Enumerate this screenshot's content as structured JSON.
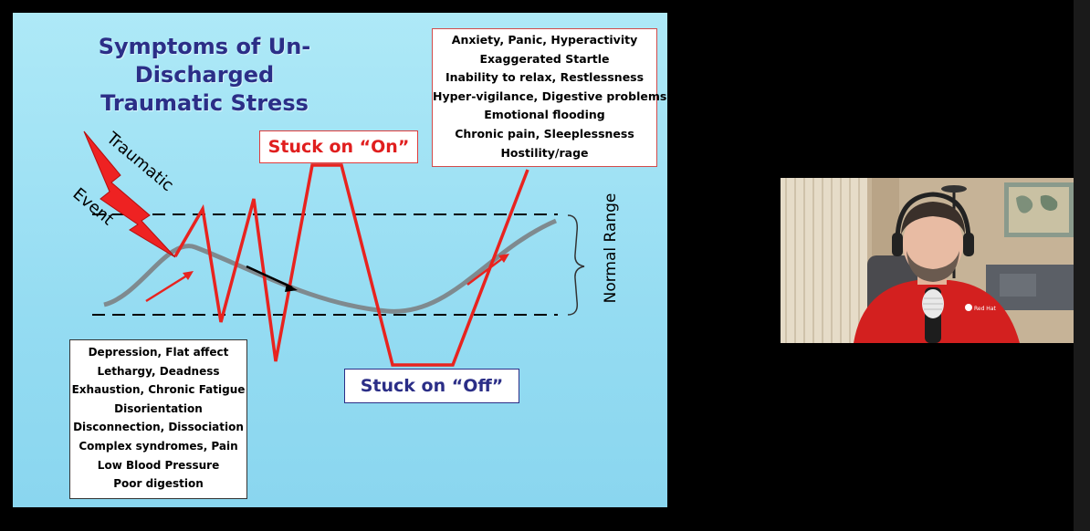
{
  "slide": {
    "title_line1": "Symptoms of Un-Discharged",
    "title_line2": "Traumatic Stress",
    "trauma_word1": "Traumatic",
    "trauma_word2": "Event",
    "stuck_on": "Stuck on “On”",
    "stuck_off": "Stuck on “Off”",
    "normal_range": "Normal Range",
    "hyperarousal_symptoms": [
      "Anxiety, Panic, Hyperactivity",
      "Exaggerated Startle",
      "Inability to relax, Restlessness",
      "Hyper-vigilance, Digestive problems",
      "Emotional flooding",
      "Chronic pain,  Sleeplessness",
      "Hostility/rage"
    ],
    "hypoarousal_symptoms": [
      "Depression, Flat affect",
      "Lethargy, Deadness",
      "Exhaustion, Chronic Fatigue",
      "Disorientation",
      "Disconnection, Dissociation",
      "Complex syndromes, Pain",
      "Low Blood Pressure",
      "Poor digestion"
    ],
    "colors": {
      "title": "#2b2e87",
      "red_line": "#e8231f",
      "gray_wave": "#7f8a8f",
      "background": "#9fe2f4"
    }
  },
  "webcam": {
    "description_icon": "presenter-video-feed",
    "shirt_logo": "Red Hat"
  }
}
